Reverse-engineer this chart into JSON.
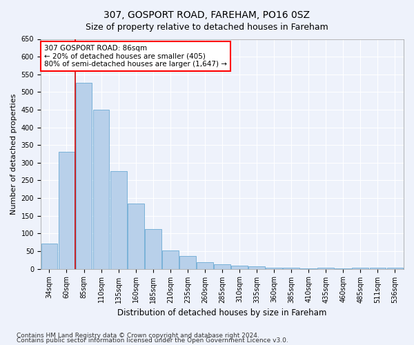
{
  "title": "307, GOSPORT ROAD, FAREHAM, PO16 0SZ",
  "subtitle": "Size of property relative to detached houses in Fareham",
  "xlabel": "Distribution of detached houses by size in Fareham",
  "ylabel": "Number of detached properties",
  "categories": [
    "34sqm",
    "60sqm",
    "85sqm",
    "110sqm",
    "135sqm",
    "160sqm",
    "185sqm",
    "210sqm",
    "235sqm",
    "260sqm",
    "285sqm",
    "310sqm",
    "335sqm",
    "360sqm",
    "385sqm",
    "410sqm",
    "435sqm",
    "460sqm",
    "485sqm",
    "511sqm",
    "536sqm"
  ],
  "values": [
    72,
    330,
    527,
    449,
    277,
    185,
    113,
    51,
    36,
    18,
    13,
    8,
    6,
    4,
    3,
    1,
    3,
    1,
    4,
    4,
    3
  ],
  "bar_color": "#b8d0ea",
  "bar_edge_color": "#6aaad4",
  "vline_x": 1.5,
  "vline_color": "#cc0000",
  "annotation_text_line1": "307 GOSPORT ROAD: 86sqm",
  "annotation_text_line2": "← 20% of detached houses are smaller (405)",
  "annotation_text_line3": "80% of semi-detached houses are larger (1,647) →",
  "ylim": [
    0,
    650
  ],
  "yticks": [
    0,
    50,
    100,
    150,
    200,
    250,
    300,
    350,
    400,
    450,
    500,
    550,
    600,
    650
  ],
  "footnote1": "Contains HM Land Registry data © Crown copyright and database right 2024.",
  "footnote2": "Contains public sector information licensed under the Open Government Licence v3.0.",
  "background_color": "#eef2fb",
  "grid_color": "#ffffff",
  "title_fontsize": 10,
  "subtitle_fontsize": 9,
  "tick_fontsize": 7,
  "ylabel_fontsize": 8,
  "xlabel_fontsize": 8.5,
  "footnote_fontsize": 6.5,
  "annotation_fontsize": 7.5
}
